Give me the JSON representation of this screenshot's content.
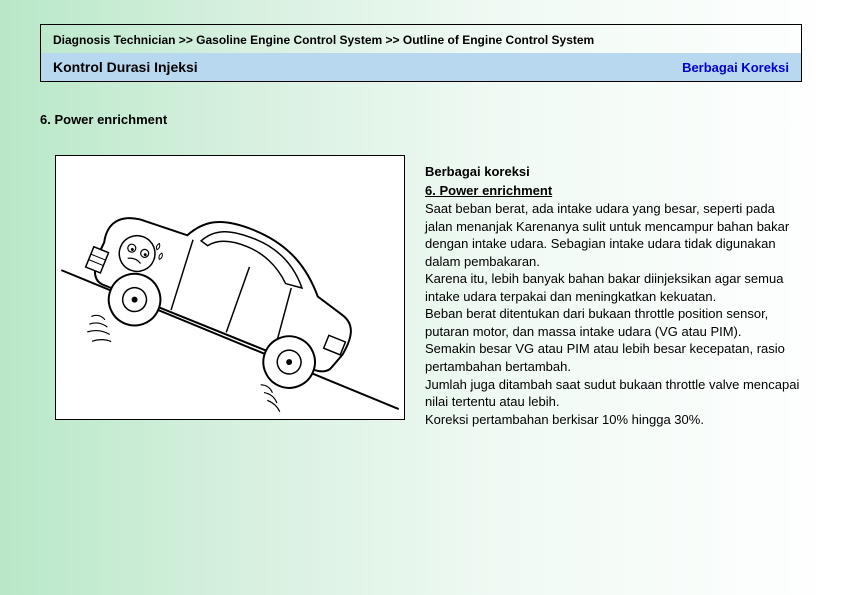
{
  "header": {
    "breadcrumb": "Diagnosis Technician >> Gasoline Engine Control System >> Outline of Engine Control System",
    "title_left": "Kontrol Durasi Injeksi",
    "title_right": "Berbagai Koreksi"
  },
  "section": {
    "heading": "6. Power enrichment"
  },
  "content": {
    "heading": "Berbagai koreksi",
    "subheading": "6. Power enrichment",
    "body": "Saat beban berat, ada intake udara yang besar, seperti pada jalan menanjak Karenanya sulit untuk mencampur bahan bakar dengan intake udara. Sebagian intake udara tidak digunakan dalam pembakaran.\nKarena itu, lebih banyak bahan bakar diinjeksikan agar semua intake udara terpakai dan meningkatkan kekuatan.\nBeban berat ditentukan dari bukaan throttle position sensor, putaran motor, dan massa intake udara (VG atau PIM).\nSemakin besar VG atau PIM atau lebih besar kecepatan, rasio pertambahan bertambah.\nJumlah juga ditambah saat sudut bukaan throttle valve mencapai nilai tertentu atau lebih.\nKoreksi pertambahan berkisar 10% hingga 30%."
  },
  "colors": {
    "title_bar_bg": "#b8d8f0",
    "title_right_color": "#0000cc",
    "border": "#000000",
    "illustration_bg": "#ffffff"
  }
}
